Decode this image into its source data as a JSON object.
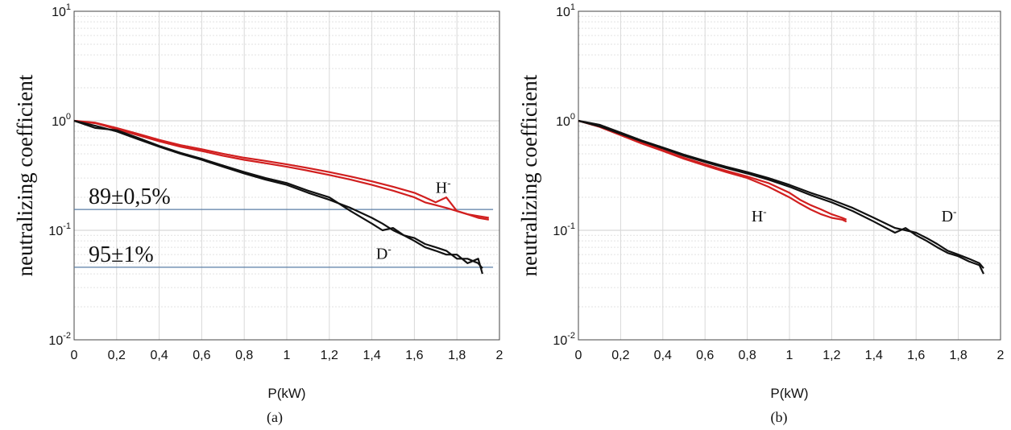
{
  "chart_data": [
    {
      "panel": "(a)",
      "type": "line",
      "xlabel": "P(kW)",
      "ylabel": "neutralizing coefficient",
      "yscale": "log",
      "xlim": [
        0,
        2
      ],
      "ylim": [
        0.01,
        10
      ],
      "xticks": [
        0,
        0.2,
        0.4,
        0.6,
        0.8,
        1,
        1.2,
        1.4,
        1.6,
        1.8,
        2
      ],
      "xtick_labels": [
        "0",
        "0,2",
        "0,4",
        "0,6",
        "0,8",
        "1",
        "1,2",
        "1,4",
        "1,6",
        "1,8",
        "2"
      ],
      "yticks": [
        0.01,
        0.1,
        1,
        10
      ],
      "ytick_labels": [
        [
          "10",
          "-2"
        ],
        [
          "10",
          "-1"
        ],
        [
          "10",
          "0"
        ],
        [
          "10",
          "1"
        ]
      ],
      "grid": true,
      "series": [
        {
          "name": "H-",
          "color": "#d11f1f",
          "x": [
            0,
            0.1,
            0.2,
            0.3,
            0.4,
            0.5,
            0.6,
            0.7,
            0.8,
            0.9,
            1.0,
            1.1,
            1.2,
            1.3,
            1.4,
            1.5,
            1.6,
            1.65,
            1.7,
            1.75,
            1.8,
            1.85,
            1.9,
            1.95
          ],
          "y": [
            1.0,
            0.96,
            0.86,
            0.76,
            0.67,
            0.6,
            0.55,
            0.5,
            0.46,
            0.43,
            0.4,
            0.37,
            0.34,
            0.31,
            0.28,
            0.25,
            0.22,
            0.2,
            0.18,
            0.2,
            0.15,
            0.14,
            0.135,
            0.13
          ]
        },
        {
          "name": "",
          "color": "#d11f1f",
          "x": [
            0,
            0.1,
            0.2,
            0.3,
            0.4,
            0.5,
            0.6,
            0.7,
            0.8,
            0.9,
            1.0,
            1.1,
            1.2,
            1.3,
            1.4,
            1.5,
            1.6,
            1.65,
            1.7,
            1.75,
            1.8,
            1.85,
            1.9,
            1.95
          ],
          "y": [
            1.0,
            0.95,
            0.84,
            0.74,
            0.65,
            0.58,
            0.53,
            0.48,
            0.44,
            0.41,
            0.38,
            0.35,
            0.32,
            0.29,
            0.26,
            0.23,
            0.2,
            0.18,
            0.17,
            0.16,
            0.15,
            0.14,
            0.13,
            0.125
          ]
        },
        {
          "name": "D-",
          "color": "#111111",
          "x": [
            0,
            0.1,
            0.2,
            0.3,
            0.4,
            0.5,
            0.6,
            0.7,
            0.8,
            0.9,
            1.0,
            1.1,
            1.2,
            1.3,
            1.4,
            1.45,
            1.5,
            1.55,
            1.6,
            1.65,
            1.7,
            1.75,
            1.8,
            1.85,
            1.9,
            1.92
          ],
          "y": [
            1.0,
            0.9,
            0.8,
            0.68,
            0.58,
            0.5,
            0.44,
            0.38,
            0.33,
            0.29,
            0.26,
            0.22,
            0.19,
            0.16,
            0.13,
            0.115,
            0.1,
            0.09,
            0.085,
            0.075,
            0.07,
            0.065,
            0.055,
            0.055,
            0.05,
            0.045
          ]
        },
        {
          "name": "",
          "color": "#111111",
          "x": [
            0,
            0.1,
            0.2,
            0.3,
            0.4,
            0.5,
            0.6,
            0.7,
            0.8,
            0.9,
            1.0,
            1.1,
            1.2,
            1.3,
            1.4,
            1.45,
            1.5,
            1.55,
            1.6,
            1.65,
            1.7,
            1.75,
            1.8,
            1.85,
            1.9,
            1.92
          ],
          "y": [
            1.0,
            0.86,
            0.82,
            0.7,
            0.59,
            0.51,
            0.45,
            0.39,
            0.34,
            0.3,
            0.27,
            0.23,
            0.2,
            0.15,
            0.115,
            0.1,
            0.105,
            0.09,
            0.08,
            0.07,
            0.065,
            0.06,
            0.06,
            0.05,
            0.055,
            0.04
          ]
        }
      ],
      "reference_lines": [
        {
          "y": 0.155,
          "color": "#5a7ea6",
          "label": "89±0,5%"
        },
        {
          "y": 0.046,
          "color": "#5a7ea6",
          "label": "95±1%"
        }
      ],
      "curve_labels": [
        {
          "text": "H",
          "sup": "-",
          "x": 1.7,
          "y": 0.22
        },
        {
          "text": "D",
          "sup": "-",
          "x": 1.42,
          "y": 0.055
        }
      ]
    },
    {
      "panel": "(b)",
      "type": "line",
      "xlabel": "P(kW)",
      "ylabel": "neutralizing coefficient",
      "yscale": "log",
      "xlim": [
        0,
        2
      ],
      "ylim": [
        0.01,
        10
      ],
      "xticks": [
        0,
        0.2,
        0.4,
        0.6,
        0.8,
        1,
        1.2,
        1.4,
        1.6,
        1.8,
        2
      ],
      "xtick_labels": [
        "0",
        "0,2",
        "0,4",
        "0,6",
        "0,8",
        "1",
        "1,2",
        "1,4",
        "1,6",
        "1,8",
        "2"
      ],
      "yticks": [
        0.01,
        0.1,
        1,
        10
      ],
      "ytick_labels": [
        [
          "10",
          "-2"
        ],
        [
          "10",
          "-1"
        ],
        [
          "10",
          "0"
        ],
        [
          "10",
          "1"
        ]
      ],
      "grid": true,
      "series": [
        {
          "name": "H-",
          "color": "#d11f1f",
          "x": [
            0,
            0.1,
            0.2,
            0.3,
            0.4,
            0.5,
            0.6,
            0.7,
            0.8,
            0.9,
            1.0,
            1.05,
            1.1,
            1.15,
            1.2,
            1.25,
            1.27
          ],
          "y": [
            1.0,
            0.9,
            0.76,
            0.64,
            0.54,
            0.46,
            0.4,
            0.35,
            0.31,
            0.27,
            0.22,
            0.19,
            0.17,
            0.155,
            0.14,
            0.13,
            0.125
          ]
        },
        {
          "name": "",
          "color": "#d11f1f",
          "x": [
            0,
            0.1,
            0.2,
            0.3,
            0.4,
            0.5,
            0.6,
            0.7,
            0.8,
            0.9,
            1.0,
            1.05,
            1.1,
            1.15,
            1.2,
            1.25,
            1.27
          ],
          "y": [
            1.0,
            0.88,
            0.74,
            0.62,
            0.53,
            0.45,
            0.39,
            0.34,
            0.3,
            0.25,
            0.2,
            0.175,
            0.155,
            0.14,
            0.13,
            0.125,
            0.12
          ]
        },
        {
          "name": "D-",
          "color": "#111111",
          "x": [
            0,
            0.1,
            0.2,
            0.3,
            0.4,
            0.5,
            0.6,
            0.7,
            0.8,
            0.9,
            1.0,
            1.1,
            1.2,
            1.3,
            1.4,
            1.5,
            1.55,
            1.6,
            1.65,
            1.7,
            1.75,
            1.8,
            1.85,
            1.9,
            1.92
          ],
          "y": [
            1.0,
            0.92,
            0.78,
            0.66,
            0.57,
            0.49,
            0.43,
            0.38,
            0.34,
            0.3,
            0.26,
            0.22,
            0.19,
            0.16,
            0.13,
            0.105,
            0.1,
            0.095,
            0.085,
            0.075,
            0.065,
            0.06,
            0.055,
            0.05,
            0.045
          ]
        },
        {
          "name": "",
          "color": "#111111",
          "x": [
            0,
            0.1,
            0.2,
            0.3,
            0.4,
            0.5,
            0.6,
            0.7,
            0.8,
            0.9,
            1.0,
            1.1,
            1.2,
            1.3,
            1.4,
            1.5,
            1.55,
            1.6,
            1.65,
            1.7,
            1.75,
            1.8,
            1.85,
            1.9,
            1.92
          ],
          "y": [
            1.0,
            0.89,
            0.76,
            0.65,
            0.56,
            0.48,
            0.42,
            0.37,
            0.33,
            0.29,
            0.25,
            0.21,
            0.18,
            0.15,
            0.12,
            0.095,
            0.105,
            0.09,
            0.08,
            0.07,
            0.062,
            0.058,
            0.052,
            0.048,
            0.04
          ]
        }
      ],
      "reference_lines": [],
      "curve_labels": [
        {
          "text": "H",
          "sup": "-",
          "x": 0.82,
          "y": 0.12
        },
        {
          "text": "D",
          "sup": "-",
          "x": 1.72,
          "y": 0.12
        }
      ]
    }
  ],
  "captions": [
    "(a)",
    "(b)"
  ]
}
